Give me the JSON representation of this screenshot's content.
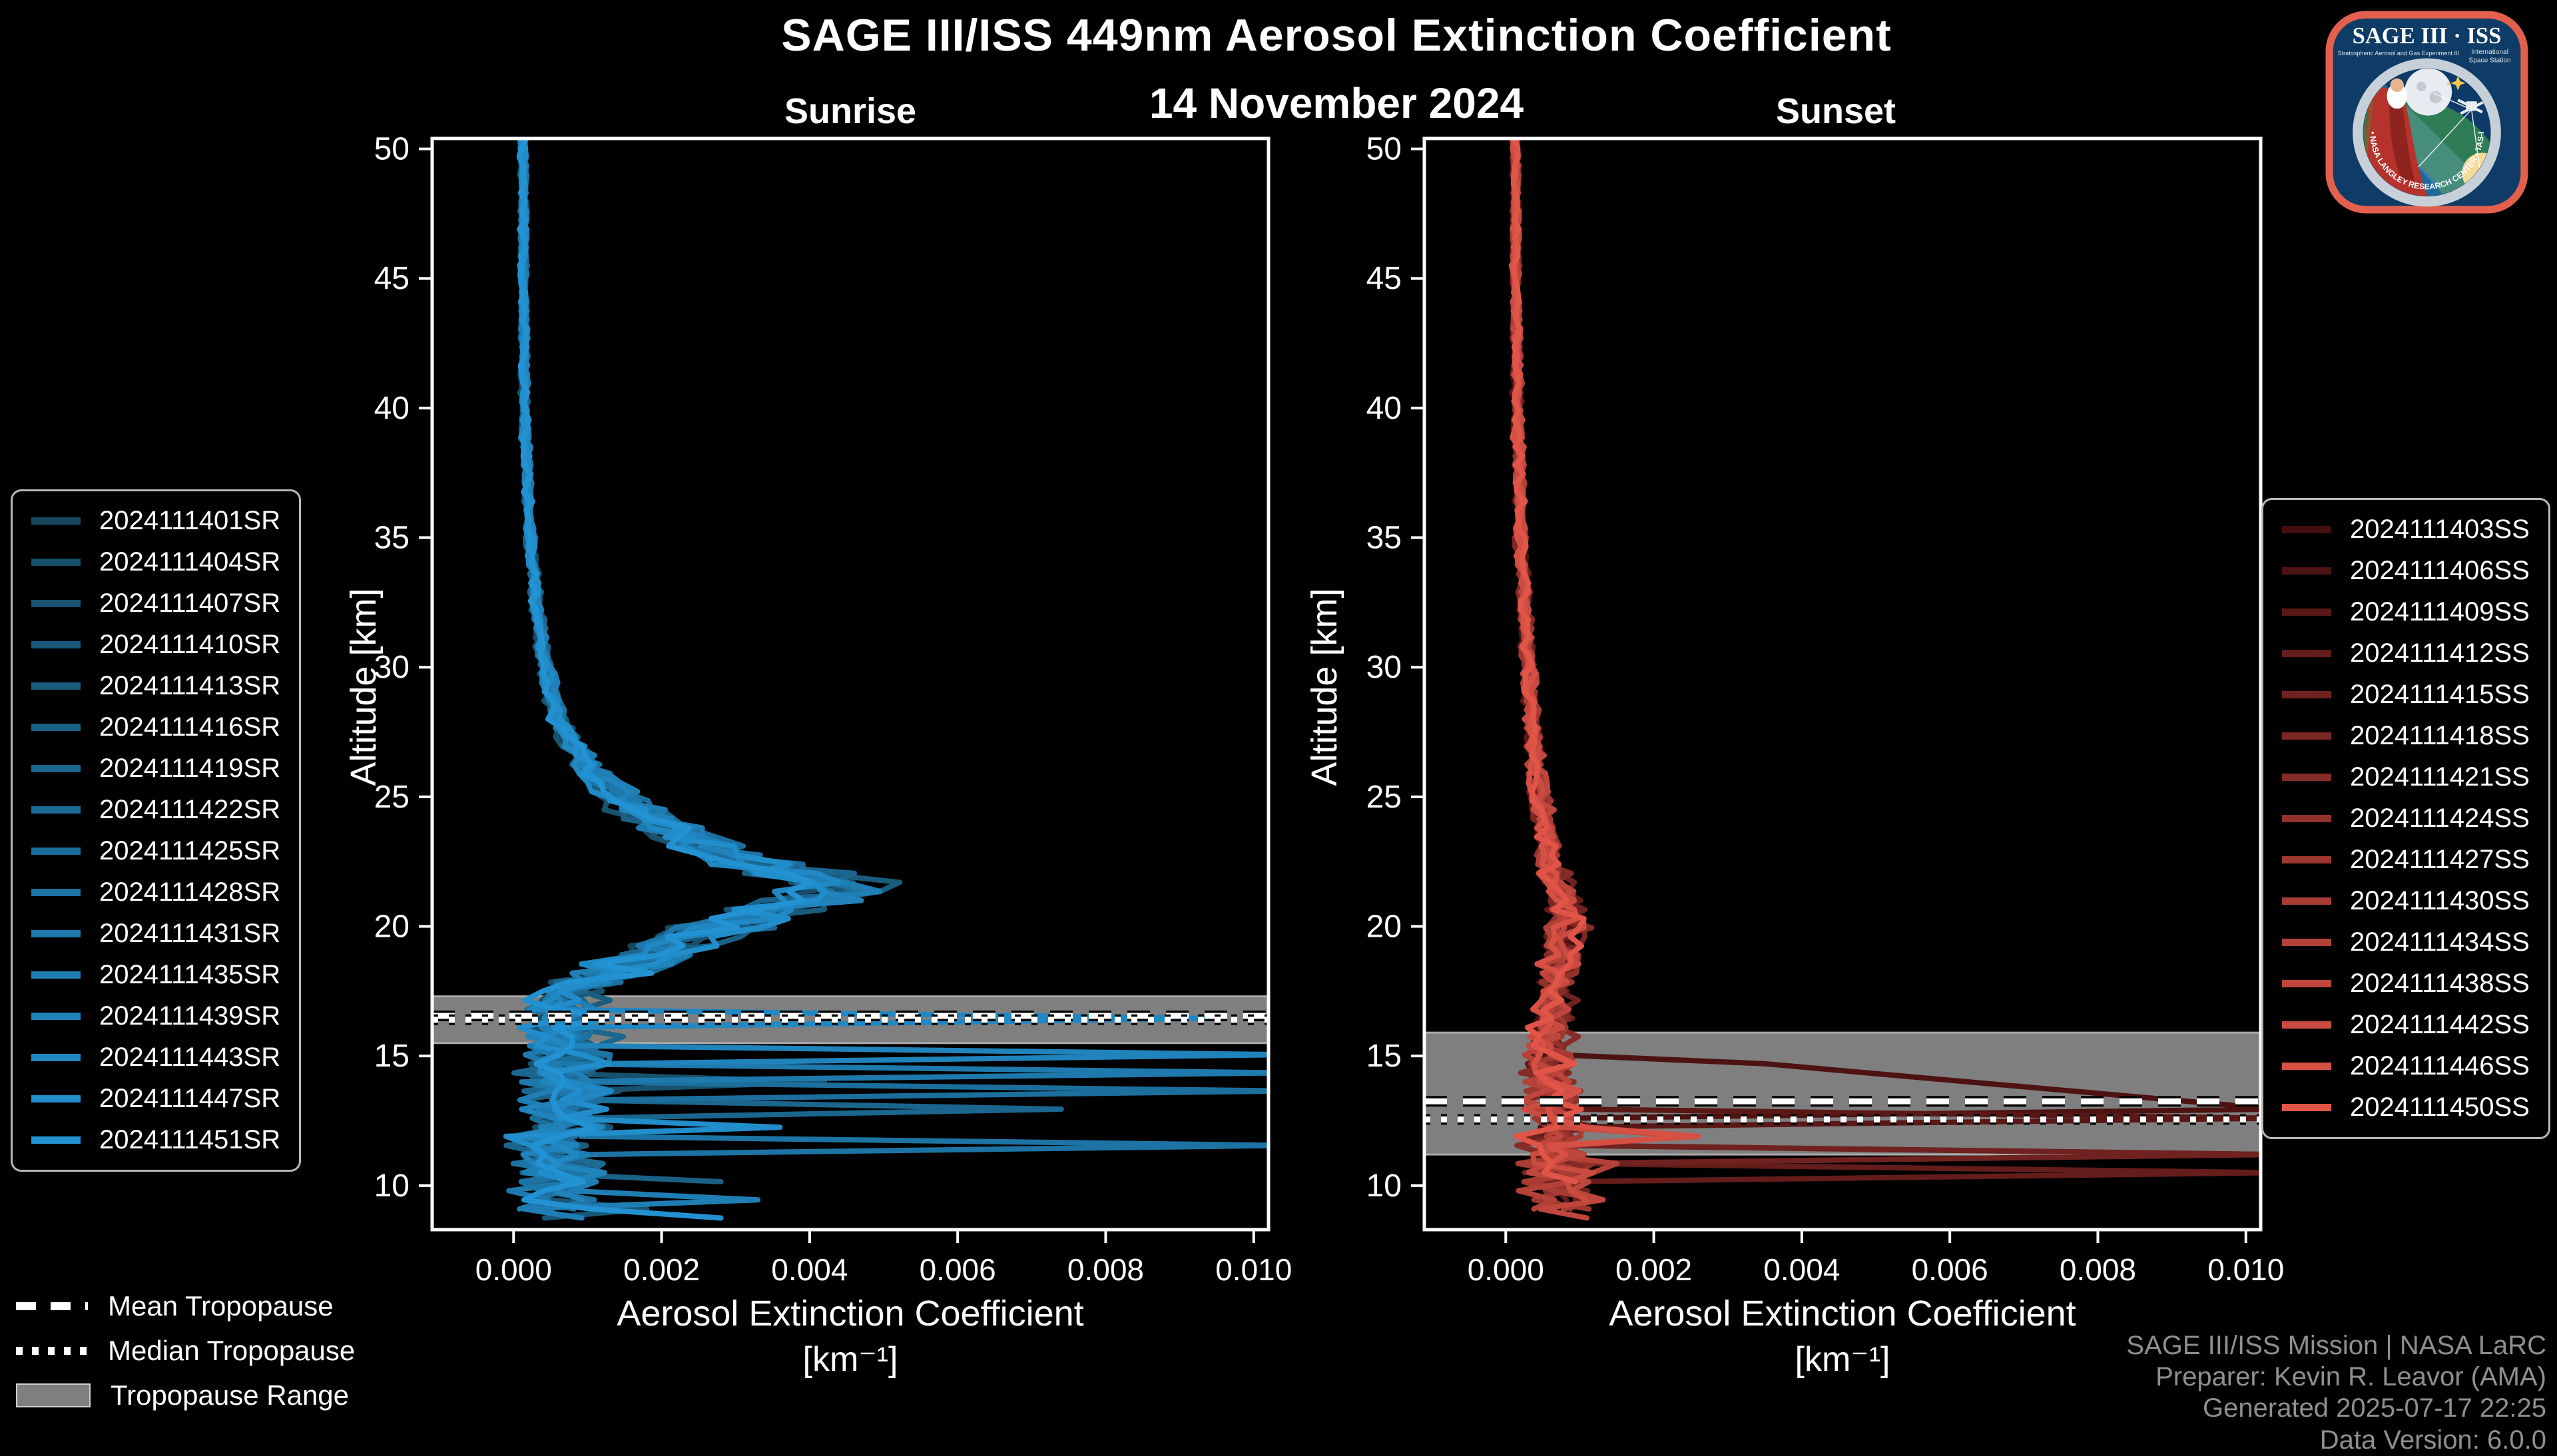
{
  "header": {
    "title": "SAGE III/ISS 449nm Aerosol Extinction Coefficient",
    "date": "14 November 2024"
  },
  "colors": {
    "background": "#000000",
    "frame": "#ffffff",
    "band": "#7f7f7f",
    "band_edge": "#aaaaaa",
    "tropo_line": "#ffffff",
    "tropo_casing": "#000000",
    "footer_text": "#8f8f8f"
  },
  "chart_data": [
    {
      "type": "line",
      "panel": "sunrise",
      "title": "Sunrise",
      "xlabel": "Aerosol Extinction Coefficient",
      "xlabel_unit": "[km⁻¹]",
      "ylabel": "Altitude [km]",
      "xlim": [
        -0.0011,
        0.0102
      ],
      "ylim": [
        8.3,
        50.4
      ],
      "xticks": [
        0.0,
        0.002,
        0.004,
        0.006,
        0.008,
        0.01
      ],
      "yticks": [
        10,
        15,
        20,
        25,
        30,
        35,
        40,
        45,
        50
      ],
      "grid": false,
      "legend_position": "outside-left",
      "color_start": "#164860",
      "color_end": "#2292D2",
      "series_ids": [
        "2024111401SR",
        "2024111404SR",
        "2024111407SR",
        "2024111410SR",
        "2024111413SR",
        "2024111416SR",
        "2024111419SR",
        "2024111422SR",
        "2024111425SR",
        "2024111428SR",
        "2024111431SR",
        "2024111435SR",
        "2024111439SR",
        "2024111443SR",
        "2024111447SR",
        "2024111451SR"
      ],
      "mean_profile": [
        [
          50.4,
          0.00013
        ],
        [
          45,
          0.00013
        ],
        [
          40,
          0.00015
        ],
        [
          36,
          0.0002
        ],
        [
          33,
          0.00028
        ],
        [
          30,
          0.00042
        ],
        [
          28,
          0.0006
        ],
        [
          27,
          0.0008
        ],
        [
          26,
          0.00105
        ],
        [
          25,
          0.0014
        ],
        [
          24,
          0.0019
        ],
        [
          23,
          0.0026
        ],
        [
          22.3,
          0.0034
        ],
        [
          21.6,
          0.0044
        ],
        [
          21.2,
          0.0042
        ],
        [
          20.6,
          0.0034
        ],
        [
          20,
          0.0028
        ],
        [
          19,
          0.00195
        ],
        [
          18.2,
          0.0013
        ],
        [
          17.6,
          0.00085
        ],
        [
          17,
          0.00062
        ],
        [
          16.2,
          0.0007
        ],
        [
          15.5,
          0.00075
        ],
        [
          14.5,
          0.00065
        ],
        [
          13.5,
          0.0007
        ],
        [
          12.5,
          0.00065
        ],
        [
          11.5,
          0.00055
        ],
        [
          10.5,
          0.0006
        ],
        [
          9.5,
          0.00055
        ],
        [
          8.3,
          0.0006
        ]
      ],
      "spread_profile": [
        [
          50.4,
          0.1
        ],
        [
          35,
          0.12
        ],
        [
          28,
          0.16
        ],
        [
          24,
          0.2
        ],
        [
          21.5,
          0.16
        ],
        [
          19,
          0.25
        ],
        [
          18,
          0.4
        ],
        [
          16,
          0.5
        ],
        [
          8.3,
          0.55
        ]
      ],
      "add_noise_profile": [
        [
          50.4,
          4e-05
        ],
        [
          20,
          5e-05
        ],
        [
          18,
          0.0003
        ],
        [
          16,
          0.0004
        ],
        [
          8.3,
          0.00045
        ]
      ],
      "spikes": [
        {
          "series": 13,
          "alt": 16.35,
          "ext": 0.0094
        },
        {
          "series": 12,
          "alt": 15.15,
          "ext": 0.0104
        },
        {
          "series": 10,
          "alt": 14.5,
          "ext": 0.0104
        },
        {
          "series": 8,
          "alt": 13.65,
          "ext": 0.0104
        },
        {
          "series": 6,
          "alt": 13.0,
          "ext": 0.0074
        },
        {
          "series": 9,
          "alt": 11.55,
          "ext": 0.0104
        },
        {
          "series": 14,
          "alt": 12.35,
          "ext": 0.0036
        },
        {
          "series": 2,
          "alt": 14.05,
          "ext": 0.0042
        },
        {
          "series": 5,
          "alt": 10.3,
          "ext": 0.0028
        },
        {
          "series": 11,
          "alt": 9.5,
          "ext": 0.0033
        },
        {
          "series": 3,
          "alt": 9.0,
          "ext": 0.0018
        },
        {
          "series": 15,
          "alt": 8.9,
          "ext": 0.0028
        }
      ],
      "tropopause": {
        "mean_km": 16.55,
        "median_km": 16.4,
        "range_km": [
          15.5,
          17.3
        ]
      }
    },
    {
      "type": "line",
      "panel": "sunset",
      "title": "Sunset",
      "xlabel": "Aerosol Extinction Coefficient",
      "xlabel_unit": "[km⁻¹]",
      "ylabel": "Altitude [km]",
      "xlim": [
        -0.0011,
        0.0102
      ],
      "ylim": [
        8.3,
        50.4
      ],
      "xticks": [
        0.0,
        0.002,
        0.004,
        0.006,
        0.008,
        0.01
      ],
      "yticks": [
        10,
        15,
        20,
        25,
        30,
        35,
        40,
        45,
        50
      ],
      "grid": false,
      "legend_position": "outside-right",
      "color_start": "#420E0E",
      "color_end": "#E15548",
      "series_ids": [
        "2024111403SS",
        "2024111406SS",
        "2024111409SS",
        "2024111412SS",
        "2024111415SS",
        "2024111418SS",
        "2024111421SS",
        "2024111424SS",
        "2024111427SS",
        "2024111430SS",
        "2024111434SS",
        "2024111438SS",
        "2024111442SS",
        "2024111446SS",
        "2024111450SS"
      ],
      "mean_profile": [
        [
          50.4,
          0.00013
        ],
        [
          45,
          0.00013
        ],
        [
          40,
          0.00016
        ],
        [
          35,
          0.0002
        ],
        [
          30,
          0.0003
        ],
        [
          27,
          0.00038
        ],
        [
          25,
          0.00045
        ],
        [
          23,
          0.00055
        ],
        [
          21.5,
          0.0007
        ],
        [
          20.5,
          0.00085
        ],
        [
          19.8,
          0.0008
        ],
        [
          19,
          0.00075
        ],
        [
          18,
          0.0007
        ],
        [
          17,
          0.00062
        ],
        [
          16,
          0.0006
        ],
        [
          15,
          0.00055
        ],
        [
          14,
          0.0006
        ],
        [
          13,
          0.00062
        ],
        [
          12,
          0.0007
        ],
        [
          11,
          0.00065
        ],
        [
          10,
          0.0007
        ],
        [
          9.2,
          0.0008
        ],
        [
          8.6,
          0.00085
        ]
      ],
      "spread_profile": [
        [
          50.4,
          0.1
        ],
        [
          30,
          0.14
        ],
        [
          22,
          0.25
        ],
        [
          20,
          0.3
        ],
        [
          17,
          0.3
        ],
        [
          13,
          0.45
        ],
        [
          8.6,
          0.5
        ]
      ],
      "add_noise_profile": [
        [
          50.4,
          4e-05
        ],
        [
          20,
          8e-05
        ],
        [
          15,
          0.0002
        ],
        [
          8.6,
          0.00035
        ]
      ],
      "spikes": [
        {
          "series": 1,
          "alt": 14.8,
          "ext": 0.0035,
          "alt2": 12.85,
          "ext2": 0.0104
        },
        {
          "series": 2,
          "alt": 12.75,
          "ext": 0.0104
        },
        {
          "series": 0,
          "alt": 11.35,
          "ext": 0.0104
        },
        {
          "series": 3,
          "alt": 10.55,
          "ext": 0.0104
        },
        {
          "series": 4,
          "alt": 11.1,
          "ext": 0.0104
        },
        {
          "series": 13,
          "alt": 11.85,
          "ext": 0.0026
        },
        {
          "series": 12,
          "alt": 12.05,
          "ext": 0.0025
        },
        {
          "series": 10,
          "alt": 10.9,
          "ext": 0.0015
        }
      ],
      "tropopause": {
        "mean_km": 13.25,
        "median_km": 12.55,
        "range_km": [
          11.2,
          15.9
        ]
      }
    }
  ],
  "legend_tropopause": {
    "items": [
      {
        "label": "Mean Tropopause",
        "style": "dashed"
      },
      {
        "label": "Median Tropopause",
        "style": "dotted"
      },
      {
        "label": "Tropopause Range",
        "style": "band"
      }
    ]
  },
  "footer": {
    "lines": [
      "SAGE III/ISS Mission | NASA LaRC",
      "Preparer: Kevin R. Leavor (AMA)",
      "Generated 2025-07-17 22:25",
      "Data Version: 6.0.0"
    ]
  },
  "logo": {
    "title": "SAGE III · ISS",
    "sub_left": "Stratospheric Aerosol and Gas Experiment III",
    "sub_right_1": "International",
    "sub_right_2": "Space Station",
    "ring_text": "BALL • NASA LANGLEY RESEARCH CENTER • TAS-I • ESA"
  }
}
